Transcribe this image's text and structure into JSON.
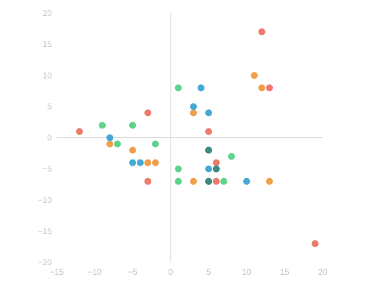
{
  "chart_data": {
    "type": "scatter",
    "title": "",
    "xlabel": "",
    "ylabel": "",
    "xlim": [
      -15,
      20
    ],
    "ylim": [
      -20,
      20
    ],
    "x_ticks": [
      -15,
      -10,
      -5,
      0,
      5,
      10,
      15,
      20
    ],
    "y_ticks": [
      -20,
      -15,
      -10,
      -5,
      0,
      5,
      10,
      15,
      20
    ],
    "x_tick_labels": [
      "−15",
      "−10",
      "−5",
      "0",
      "5",
      "10",
      "15",
      "20"
    ],
    "y_tick_labels": [
      "−20",
      "−15",
      "−10",
      "−5",
      "0",
      "5",
      "10",
      "15",
      "20"
    ],
    "grid": false,
    "legend": "none",
    "series": [
      {
        "color": "#ec7b6b",
        "points": [
          [
            12,
            17
          ],
          [
            13,
            8
          ],
          [
            -12,
            1
          ],
          [
            -3,
            4
          ],
          [
            5,
            1
          ],
          [
            6,
            -4
          ],
          [
            -3,
            -7
          ],
          [
            6,
            -7
          ],
          [
            19,
            -17
          ]
        ]
      },
      {
        "color": "#f0a04b",
        "points": [
          [
            11,
            10
          ],
          [
            12,
            8
          ],
          [
            3,
            4
          ],
          [
            -8,
            -1
          ],
          [
            -5,
            -2
          ],
          [
            -3,
            -4
          ],
          [
            -2,
            -4
          ],
          [
            3,
            -7
          ],
          [
            13,
            -7
          ]
        ]
      },
      {
        "color": "#45a9d6",
        "points": [
          [
            4,
            8
          ],
          [
            3,
            5
          ],
          [
            5,
            4
          ],
          [
            -8,
            0
          ],
          [
            -5,
            -4
          ],
          [
            -4,
            -4
          ],
          [
            5,
            -2
          ],
          [
            5,
            -5
          ],
          [
            5,
            -7
          ],
          [
            10,
            -7
          ]
        ]
      },
      {
        "color": "#5fd38b",
        "points": [
          [
            1,
            8
          ],
          [
            -9,
            2
          ],
          [
            -5,
            2
          ],
          [
            -7,
            -1
          ],
          [
            -2,
            -1
          ],
          [
            8,
            -3
          ],
          [
            1,
            -5
          ],
          [
            6,
            -5
          ],
          [
            1,
            -7
          ],
          [
            5,
            -7
          ],
          [
            7,
            -7
          ]
        ]
      },
      {
        "color": "#3e8a83",
        "points": [
          [
            5,
            -2
          ],
          [
            6,
            -5
          ],
          [
            5,
            -7
          ]
        ]
      }
    ]
  }
}
